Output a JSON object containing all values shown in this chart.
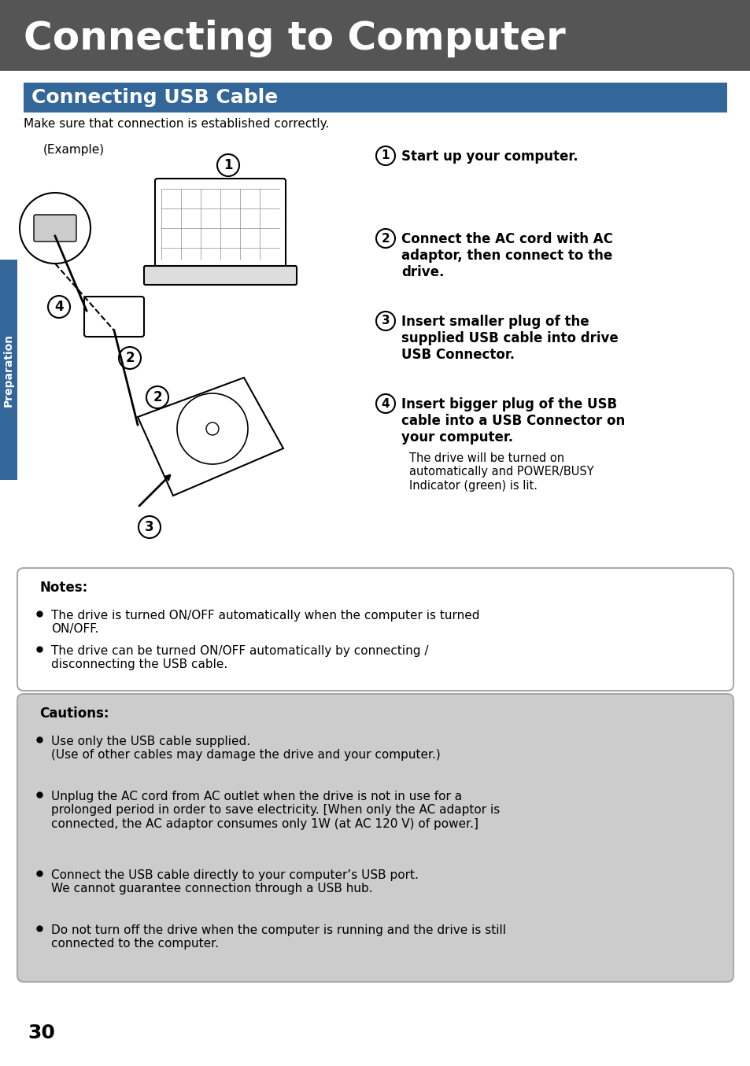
{
  "page_bg": "#ffffff",
  "header_bg": "#555555",
  "header_text": "Connecting to Computer",
  "header_text_color": "#ffffff",
  "subheader_bg": "#336699",
  "subheader_text": "Connecting USB Cable",
  "subheader_text_color": "#ffffff",
  "intro_text": "Make sure that connection is established correctly.",
  "example_label": "(Example)",
  "steps": [
    {
      "num": "1",
      "text": "Start up your computer.",
      "bold": true
    },
    {
      "num": "2",
      "text": "Connect the AC cord with AC\nadaptor, then connect to the\ndrive.",
      "bold": true
    },
    {
      "num": "3",
      "text": "Insert smaller plug of the\nsupplied USB cable into drive\nUSB Connector.",
      "bold": true
    },
    {
      "num": "4",
      "text": "Insert bigger plug of the USB\ncable into a USB Connector on\nyour computer.",
      "bold": true
    }
  ],
  "step4_subtext": "The drive will be turned on\nautomatically and POWER/BUSY\nIndicator (green) is lit.",
  "notes_bg": "#ffffff",
  "notes_border": "#aaaaaa",
  "notes_title": "Notes:",
  "notes_items": [
    "The drive is turned ON/OFF automatically when the computer is turned\nON/OFF.",
    "The drive can be turned ON/OFF automatically by connecting /\ndisconnecting the USB cable."
  ],
  "cautions_bg": "#cccccc",
  "cautions_border": "#aaaaaa",
  "cautions_title": "Cautions:",
  "cautions_items": [
    "Use only the USB cable supplied.\n(Use of other cables may damage the drive and your computer.)",
    "Unplug the AC cord from AC outlet when the drive is not in use for a\nprolonged period in order to save electricity. [When only the AC adaptor is\nconnected, the AC adaptor consumes only 1W (at AC 120 V) of power.]",
    "Connect the USB cable directly to your computer’s USB port.\nWe cannot guarantee connection through a USB hub.",
    "Do not turn off the drive when the computer is running and the drive is still\nconnected to the computer."
  ],
  "page_number": "30",
  "sidebar_bg": "#336699",
  "sidebar_text": "Preparation",
  "sidebar_text_color": "#ffffff"
}
